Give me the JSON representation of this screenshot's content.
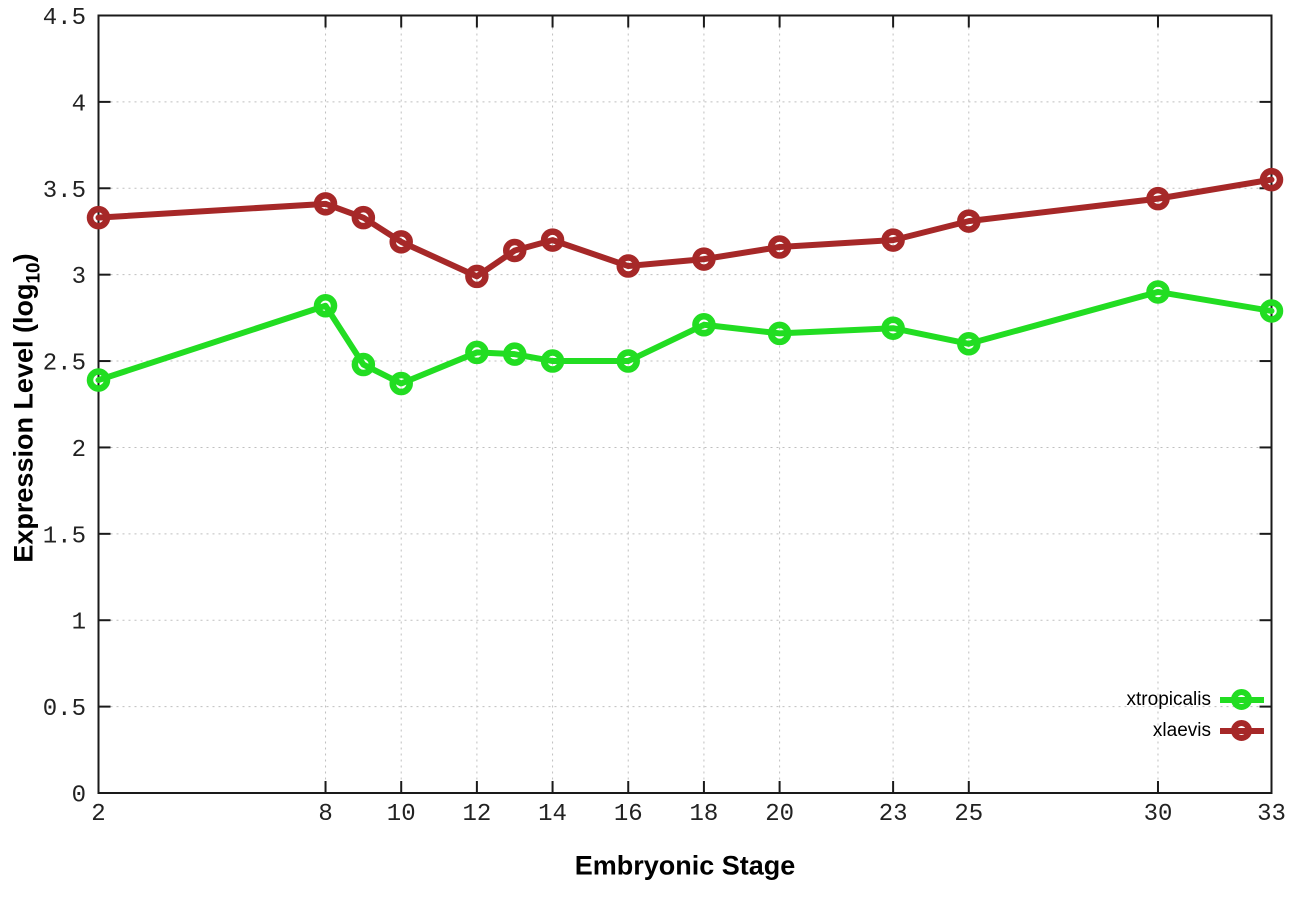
{
  "chart_data": {
    "type": "line",
    "title": "",
    "xlabel": "Embryonic Stage",
    "ylabel": "Expression Level (log10)",
    "ylabel_parts": {
      "main": "Expression Level (log",
      "sub": "10",
      "close": ")"
    },
    "x": [
      2,
      8,
      9,
      10,
      12,
      13,
      14,
      16,
      18,
      20,
      23,
      25,
      30,
      33
    ],
    "series": [
      {
        "name": "xtropicalis",
        "color": "#22dd22",
        "values": [
          2.39,
          2.82,
          2.48,
          2.37,
          2.55,
          2.54,
          2.5,
          2.5,
          2.71,
          2.66,
          2.69,
          2.6,
          2.9,
          2.79
        ]
      },
      {
        "name": "xlaevis",
        "color": "#a62828",
        "values": [
          3.33,
          3.41,
          3.33,
          3.19,
          2.99,
          3.14,
          3.2,
          3.05,
          3.09,
          3.16,
          3.2,
          3.31,
          3.44,
          3.55
        ]
      }
    ],
    "xlim": [
      2,
      33
    ],
    "ylim": [
      0,
      4.5
    ],
    "x_ticks": {
      "values": [
        2,
        8,
        10,
        12,
        14,
        16,
        18,
        20,
        23,
        25,
        30,
        33
      ],
      "labels": [
        "2",
        "8",
        "10",
        "12",
        "14",
        "16",
        "18",
        "20",
        "23",
        "25",
        "30",
        "33"
      ]
    },
    "y_ticks": {
      "values": [
        0,
        0.5,
        1,
        1.5,
        2,
        2.5,
        3,
        3.5,
        4,
        4.5
      ],
      "labels": [
        "0",
        "0.5",
        "1",
        "1.5",
        "2",
        "2.5",
        "3",
        "3.5",
        "4",
        "4.5"
      ]
    },
    "grid": true,
    "legend_position": "bottom-right",
    "legend": [
      "xtropicalis",
      "xlaevis"
    ]
  },
  "colors": {
    "background": "#ffffff",
    "grid": "#bfbfbf",
    "axis": "#1a1a1a",
    "tick_label": "#222222"
  }
}
